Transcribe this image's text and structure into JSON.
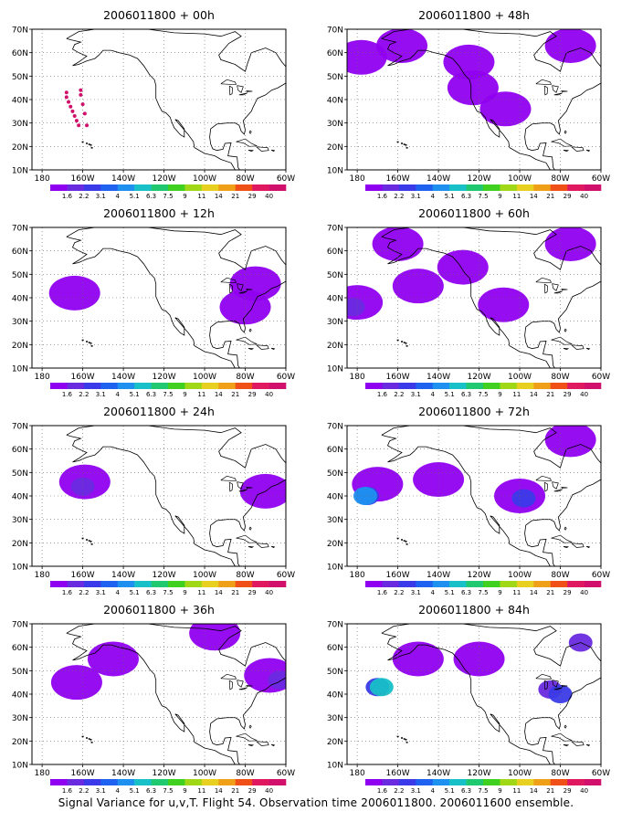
{
  "caption": "Signal Variance for u,v,T. Flight 54. Observation time 2006011800. 2006011600 ensemble.",
  "map_grid": {
    "lat_labels": [
      "70N",
      "60N",
      "50N",
      "40N",
      "30N",
      "20N",
      "10N"
    ],
    "lat_values": [
      70,
      60,
      50,
      40,
      30,
      20,
      10
    ],
    "lon_labels": [
      "180",
      "160W",
      "140W",
      "120W",
      "100W",
      "80W",
      "60W"
    ],
    "lon_values": [
      -180,
      -160,
      -140,
      -120,
      -100,
      -80,
      -60
    ],
    "lon_range": [
      -185,
      -60
    ],
    "lat_range": [
      10,
      70
    ],
    "grid": "dotted"
  },
  "colorbar": {
    "labels": [
      "1.6",
      "2.2",
      "3.1",
      "4",
      "5.1",
      "6.3",
      "7.5",
      "9",
      "11",
      "14",
      "21",
      "29",
      "40"
    ],
    "colors": [
      "#9000f0",
      "#6a2ae0",
      "#3a3ae8",
      "#1f62f0",
      "#1e90f0",
      "#18c0c8",
      "#20c870",
      "#40d020",
      "#a0d818",
      "#e8d020",
      "#f0a018",
      "#f05018",
      "#e01860",
      "#d0106a"
    ]
  },
  "chart_data": [
    {
      "type": "heatmap",
      "title": "2006011800 + 00h",
      "lead_hours": 0,
      "features": [
        {
          "kind": "points",
          "lon": [
            -168,
            -168,
            -167,
            -166,
            -165,
            -164,
            -163,
            -162,
            -161,
            -161,
            -160,
            -159,
            -158
          ],
          "lat": [
            43,
            41,
            39,
            37,
            35,
            33,
            31,
            29,
            44,
            42,
            38,
            34,
            29
          ]
        }
      ]
    },
    {
      "type": "heatmap",
      "title": "2006011800 + 12h",
      "lead_hours": 12,
      "features": [
        {
          "kind": "blob",
          "lon": -164,
          "lat": 42,
          "level": 1
        },
        {
          "kind": "blob",
          "lon": -75,
          "lat": 46,
          "level": 1
        },
        {
          "kind": "blob",
          "lon": -80,
          "lat": 36,
          "level": 1
        }
      ]
    },
    {
      "type": "heatmap",
      "title": "2006011800 + 24h",
      "lead_hours": 24,
      "features": [
        {
          "kind": "blob",
          "lon": -159,
          "lat": 46,
          "level": 1
        },
        {
          "kind": "blob",
          "lon": -160,
          "lat": 44,
          "level": 2
        },
        {
          "kind": "blob",
          "lon": -70,
          "lat": 42,
          "level": 1
        }
      ]
    },
    {
      "type": "heatmap",
      "title": "2006011800 + 36h",
      "lead_hours": 36,
      "features": [
        {
          "kind": "blob",
          "lon": -95,
          "lat": 66,
          "level": 1
        },
        {
          "kind": "blob",
          "lon": -145,
          "lat": 55,
          "level": 1
        },
        {
          "kind": "blob",
          "lon": -163,
          "lat": 45,
          "level": 1
        },
        {
          "kind": "blob",
          "lon": -68,
          "lat": 48,
          "level": 1
        },
        {
          "kind": "blob",
          "lon": -63,
          "lat": 46,
          "level": 2
        }
      ]
    },
    {
      "type": "heatmap",
      "title": "2006011800 + 48h",
      "lead_hours": 48,
      "features": [
        {
          "kind": "blob",
          "lon": -158,
          "lat": 63,
          "level": 1
        },
        {
          "kind": "blob",
          "lon": -178,
          "lat": 58,
          "level": 1
        },
        {
          "kind": "blob",
          "lon": -125,
          "lat": 56,
          "level": 1
        },
        {
          "kind": "blob",
          "lon": -107,
          "lat": 36,
          "level": 1
        },
        {
          "kind": "blob",
          "lon": -75,
          "lat": 63,
          "level": 1
        },
        {
          "kind": "blob",
          "lon": -123,
          "lat": 45,
          "level": 1
        }
      ]
    },
    {
      "type": "heatmap",
      "title": "2006011800 + 60h",
      "lead_hours": 60,
      "features": [
        {
          "kind": "blob",
          "lon": -180,
          "lat": 38,
          "level": 1
        },
        {
          "kind": "blob",
          "lon": -182,
          "lat": 36,
          "level": 2
        },
        {
          "kind": "blob",
          "lon": -160,
          "lat": 63,
          "level": 1
        },
        {
          "kind": "blob",
          "lon": -150,
          "lat": 45,
          "level": 1
        },
        {
          "kind": "blob",
          "lon": -128,
          "lat": 53,
          "level": 1
        },
        {
          "kind": "blob",
          "lon": -108,
          "lat": 37,
          "level": 1
        },
        {
          "kind": "blob",
          "lon": -75,
          "lat": 63,
          "level": 1
        }
      ]
    },
    {
      "type": "heatmap",
      "title": "2006011800 + 72h",
      "lead_hours": 72,
      "features": [
        {
          "kind": "blob",
          "lon": -170,
          "lat": 45,
          "level": 1
        },
        {
          "kind": "blob",
          "lon": -175,
          "lat": 40,
          "level": 3
        },
        {
          "kind": "blob",
          "lon": -176,
          "lat": 40,
          "level": 5
        },
        {
          "kind": "blob",
          "lon": -140,
          "lat": 47,
          "level": 1
        },
        {
          "kind": "blob",
          "lon": -100,
          "lat": 40,
          "level": 1
        },
        {
          "kind": "blob",
          "lon": -98,
          "lat": 39,
          "level": 3
        },
        {
          "kind": "blob",
          "lon": -75,
          "lat": 64,
          "level": 1
        }
      ]
    },
    {
      "type": "heatmap",
      "title": "2006011800 + 84h",
      "lead_hours": 84,
      "features": [
        {
          "kind": "blob",
          "lon": -150,
          "lat": 55,
          "level": 1
        },
        {
          "kind": "blob",
          "lon": -170,
          "lat": 43,
          "level": 3
        },
        {
          "kind": "blob",
          "lon": -168,
          "lat": 43,
          "level": 6
        },
        {
          "kind": "blob",
          "lon": -120,
          "lat": 55,
          "level": 1
        },
        {
          "kind": "blob",
          "lon": -85,
          "lat": 42,
          "level": 2
        },
        {
          "kind": "blob",
          "lon": -80,
          "lat": 40,
          "level": 3
        },
        {
          "kind": "blob",
          "lon": -70,
          "lat": 62,
          "level": 2
        }
      ]
    }
  ]
}
